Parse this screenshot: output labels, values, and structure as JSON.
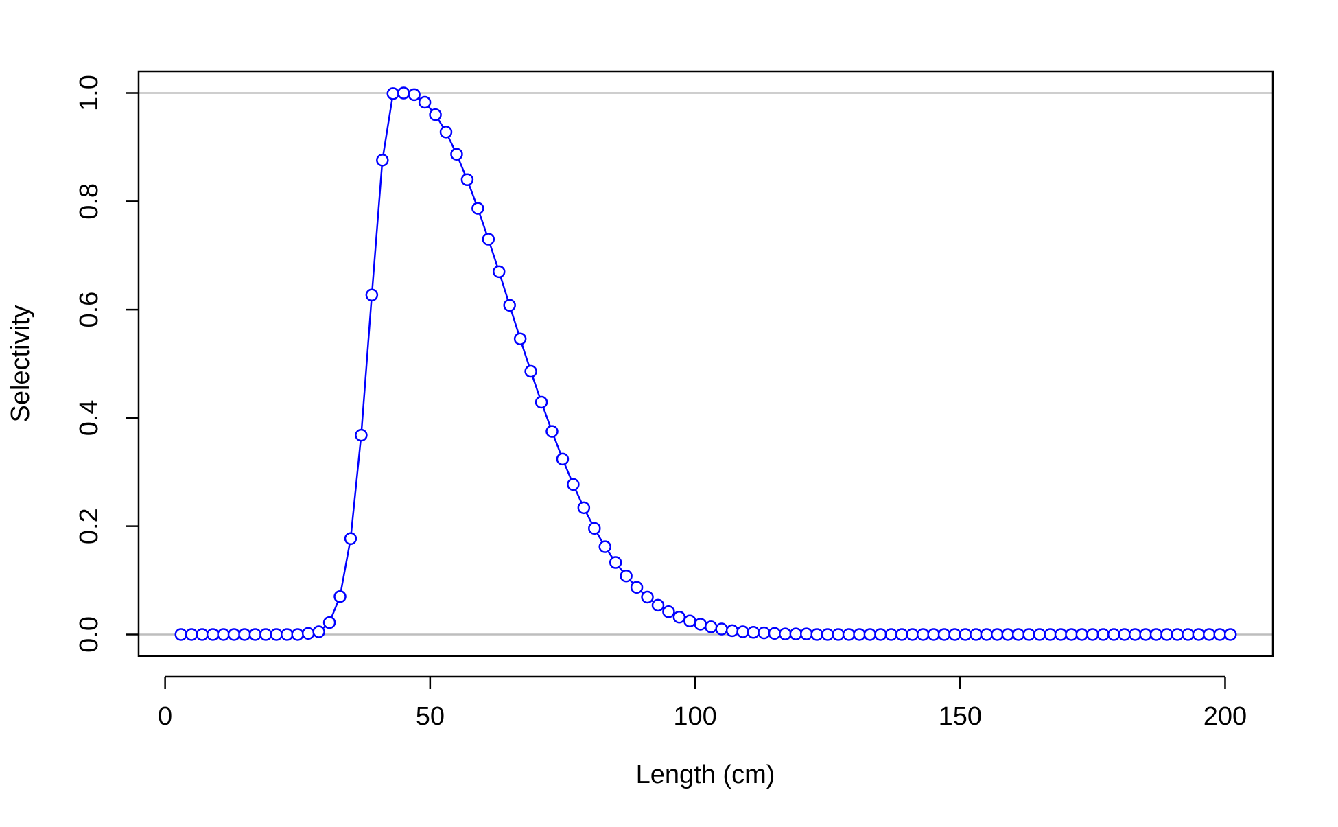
{
  "chart_data": {
    "type": "line",
    "title": "",
    "xlabel": "Length (cm)",
    "ylabel": "Selectivity",
    "xlim": [
      -5,
      209
    ],
    "ylim": [
      -0.04,
      1.04
    ],
    "x_ticks": [
      0,
      50,
      100,
      150,
      200
    ],
    "x_tick_labels": [
      "0",
      "50",
      "100",
      "150",
      "200"
    ],
    "y_ticks": [
      0.0,
      0.2,
      0.4,
      0.6,
      0.8,
      1.0
    ],
    "y_tick_labels": [
      "0.0",
      "0.2",
      "0.4",
      "0.6",
      "0.8",
      "1.0"
    ],
    "reference_lines": [
      0,
      1
    ],
    "reference_line_color": "#bebebe",
    "series_color": "#0000ff",
    "marker": "open-circle",
    "grid": false,
    "legend": "none",
    "series": [
      {
        "x": [
          3,
          5,
          7,
          9,
          11,
          13,
          15,
          17,
          19,
          21,
          23,
          25,
          27,
          29,
          31,
          33,
          35,
          37,
          39,
          41,
          43,
          45,
          47,
          49,
          51,
          53,
          55,
          57,
          59,
          61,
          63,
          65,
          67,
          69,
          71,
          73,
          75,
          77,
          79,
          81,
          83,
          85,
          87,
          89,
          91,
          93,
          95,
          97,
          99,
          101,
          103,
          105,
          107,
          109,
          111,
          113,
          115,
          117,
          119,
          121,
          123,
          125,
          127,
          129,
          131,
          133,
          135,
          137,
          139,
          141,
          143,
          145,
          147,
          149,
          151,
          153,
          155,
          157,
          159,
          161,
          163,
          165,
          167,
          169,
          171,
          173,
          175,
          177,
          179,
          181,
          183,
          185,
          187,
          189,
          191,
          193,
          195,
          197,
          199,
          201
        ],
        "y": [
          0,
          0,
          0,
          0,
          0,
          0,
          0,
          0,
          0,
          0,
          0,
          0,
          0.002,
          0.005,
          0.022,
          0.07,
          0.177,
          0.368,
          0.627,
          0.876,
          0.999,
          1.0,
          0.997,
          0.983,
          0.96,
          0.928,
          0.887,
          0.84,
          0.787,
          0.73,
          0.67,
          0.608,
          0.546,
          0.486,
          0.429,
          0.375,
          0.324,
          0.277,
          0.234,
          0.196,
          0.162,
          0.133,
          0.108,
          0.087,
          0.069,
          0.054,
          0.042,
          0.032,
          0.025,
          0.019,
          0.014,
          0.01,
          0.007,
          0.005,
          0.004,
          0.003,
          0.002,
          0.001,
          0.001,
          0.001,
          0,
          0,
          0,
          0,
          0,
          0,
          0,
          0,
          0,
          0,
          0,
          0,
          0,
          0,
          0,
          0,
          0,
          0,
          0,
          0,
          0,
          0,
          0,
          0,
          0,
          0,
          0,
          0,
          0,
          0,
          0,
          0,
          0,
          0,
          0,
          0,
          0,
          0,
          0,
          0
        ]
      }
    ]
  }
}
